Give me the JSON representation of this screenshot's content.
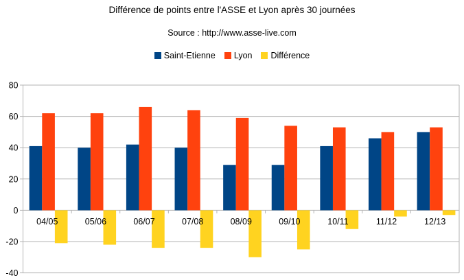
{
  "header": {
    "title": "Différence de points entre l'ASSE et Lyon après 30 journées",
    "subtitle": "Source : http://www.asse-live.com"
  },
  "colors": {
    "saint_etienne": "#004586",
    "lyon": "#FF420E",
    "difference": "#FFD320",
    "grid": "#B3B3B3",
    "text": "#000000",
    "background": "#FFFFFF"
  },
  "chart_data": {
    "type": "bar",
    "title": "Différence de points entre l'ASSE et Lyon après 30 journées",
    "subtitle": "Source : http://www.asse-live.com",
    "xlabel": "",
    "ylabel": "",
    "categories": [
      "04/05",
      "05/06",
      "06/07",
      "07/08",
      "08/09",
      "09/10",
      "10/11",
      "11/12",
      "12/13"
    ],
    "series": [
      {
        "name": "Saint-Etienne",
        "color": "#004586",
        "values": [
          41,
          40,
          42,
          40,
          29,
          29,
          41,
          46,
          50
        ]
      },
      {
        "name": "Lyon",
        "color": "#FF420E",
        "values": [
          62,
          62,
          66,
          64,
          59,
          54,
          53,
          50,
          53
        ]
      },
      {
        "name": "Différence",
        "color": "#FFD320",
        "values": [
          -21,
          -22,
          -24,
          -24,
          -30,
          -25,
          -12,
          -4,
          -3
        ]
      }
    ],
    "ylim": [
      -40,
      80
    ],
    "yticks": [
      80,
      60,
      40,
      20,
      0,
      -20,
      -40
    ],
    "ytick_step": 20,
    "grid": "horizontal",
    "legend_position": "top"
  }
}
